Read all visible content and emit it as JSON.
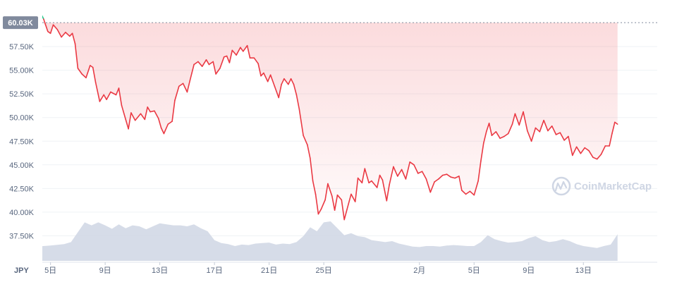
{
  "chart_data": {
    "type": "area",
    "currency_label": "JPY",
    "reference_label": "60.03K",
    "reference_value": 60030,
    "watermark": "CoinMarketCap",
    "ylim": [
      35500,
      61500
    ],
    "yticks": [
      {
        "value": 37500,
        "label": "37.50K"
      },
      {
        "value": 40000,
        "label": "40.00K"
      },
      {
        "value": 42500,
        "label": "42.50K"
      },
      {
        "value": 45000,
        "label": "45.00K"
      },
      {
        "value": 47500,
        "label": "47.50K"
      },
      {
        "value": 50000,
        "label": "50.00K"
      },
      {
        "value": 52500,
        "label": "52.50K"
      },
      {
        "value": 55000,
        "label": "55.00K"
      },
      {
        "value": 57500,
        "label": "57.50K"
      }
    ],
    "xlim": [
      0,
      41.4
    ],
    "xticks": [
      {
        "value": 4,
        "label": "5日"
      },
      {
        "value": 8,
        "label": "9日"
      },
      {
        "value": 12,
        "label": "13日"
      },
      {
        "value": 16,
        "label": "17日"
      },
      {
        "value": 20,
        "label": "21日"
      },
      {
        "value": 24,
        "label": "25日"
      },
      {
        "value": 31,
        "label": "2月"
      },
      {
        "value": 35,
        "label": "5日"
      },
      {
        "value": 39,
        "label": "9日"
      },
      {
        "value": 43,
        "label": "13日"
      }
    ],
    "colors": {
      "up": "#16c784",
      "down": "#ea3943",
      "volume": "#cfd6e4",
      "reference_box": "#808a9d",
      "grid": "#eff2f5"
    },
    "price_series": {
      "name": "Price",
      "points": [
        [
          0,
          58500
        ],
        [
          0.3,
          59500
        ],
        [
          0.6,
          58900
        ],
        [
          1.0,
          59800
        ],
        [
          1.3,
          59300
        ],
        [
          1.6,
          60100
        ],
        [
          2.0,
          60600
        ],
        [
          2.3,
          60300
        ],
        [
          2.6,
          61000
        ],
        [
          2.9,
          60500
        ],
        [
          3.2,
          61300
        ],
        [
          3.5,
          60400
        ],
        [
          3.8,
          59100
        ],
        [
          4.0,
          58900
        ],
        [
          4.2,
          59800
        ],
        [
          4.5,
          59300
        ],
        [
          4.8,
          58500
        ],
        [
          5.1,
          59000
        ],
        [
          5.4,
          58600
        ],
        [
          5.6,
          58900
        ],
        [
          5.8,
          57800
        ],
        [
          6.0,
          55200
        ],
        [
          6.3,
          54600
        ],
        [
          6.6,
          54200
        ],
        [
          6.9,
          55500
        ],
        [
          7.1,
          55300
        ],
        [
          7.3,
          53700
        ],
        [
          7.6,
          51700
        ],
        [
          7.9,
          52400
        ],
        [
          8.1,
          51900
        ],
        [
          8.4,
          52700
        ],
        [
          8.8,
          52400
        ],
        [
          9.0,
          53100
        ],
        [
          9.2,
          51300
        ],
        [
          9.5,
          49800
        ],
        [
          9.7,
          48800
        ],
        [
          9.9,
          50500
        ],
        [
          10.2,
          49700
        ],
        [
          10.6,
          50400
        ],
        [
          10.9,
          49800
        ],
        [
          11.1,
          51100
        ],
        [
          11.3,
          50600
        ],
        [
          11.6,
          50700
        ],
        [
          11.9,
          49900
        ],
        [
          12.1,
          48900
        ],
        [
          12.3,
          48300
        ],
        [
          12.6,
          49300
        ],
        [
          12.9,
          49600
        ],
        [
          13.1,
          51800
        ],
        [
          13.4,
          53300
        ],
        [
          13.7,
          53600
        ],
        [
          14.0,
          52700
        ],
        [
          14.2,
          53900
        ],
        [
          14.5,
          55600
        ],
        [
          14.8,
          55900
        ],
        [
          15.1,
          55400
        ],
        [
          15.4,
          56100
        ],
        [
          15.6,
          55600
        ],
        [
          15.9,
          55900
        ],
        [
          16.1,
          54600
        ],
        [
          16.4,
          55200
        ],
        [
          16.7,
          56400
        ],
        [
          16.9,
          56500
        ],
        [
          17.1,
          55800
        ],
        [
          17.3,
          57100
        ],
        [
          17.6,
          56600
        ],
        [
          17.9,
          57400
        ],
        [
          18.1,
          57000
        ],
        [
          18.4,
          57600
        ],
        [
          18.6,
          56300
        ],
        [
          18.9,
          56300
        ],
        [
          19.2,
          55700
        ],
        [
          19.4,
          54400
        ],
        [
          19.6,
          54700
        ],
        [
          19.9,
          53800
        ],
        [
          20.1,
          54500
        ],
        [
          20.4,
          53300
        ],
        [
          20.7,
          52100
        ],
        [
          20.9,
          53500
        ],
        [
          21.1,
          54100
        ],
        [
          21.4,
          53500
        ],
        [
          21.6,
          54100
        ],
        [
          21.8,
          53500
        ],
        [
          22.0,
          52400
        ],
        [
          22.2,
          50900
        ],
        [
          22.5,
          48100
        ],
        [
          22.8,
          47100
        ],
        [
          23.0,
          45700
        ],
        [
          23.2,
          43300
        ],
        [
          23.4,
          41900
        ],
        [
          23.6,
          39800
        ],
        [
          23.8,
          40300
        ],
        [
          24.1,
          41300
        ],
        [
          24.3,
          43000
        ],
        [
          24.6,
          41700
        ],
        [
          24.8,
          40200
        ],
        [
          25.0,
          41800
        ],
        [
          25.3,
          41300
        ],
        [
          25.5,
          39200
        ],
        [
          25.7,
          40300
        ],
        [
          26.0,
          41900
        ],
        [
          26.3,
          41100
        ],
        [
          26.5,
          43600
        ],
        [
          26.8,
          43100
        ],
        [
          27.0,
          44600
        ],
        [
          27.3,
          43100
        ],
        [
          27.5,
          43300
        ],
        [
          27.9,
          42600
        ],
        [
          28.1,
          43900
        ],
        [
          28.3,
          43400
        ],
        [
          28.6,
          41200
        ],
        [
          28.8,
          42900
        ],
        [
          29.1,
          44800
        ],
        [
          29.4,
          43800
        ],
        [
          29.7,
          44500
        ],
        [
          30.0,
          43500
        ],
        [
          30.3,
          45300
        ],
        [
          30.6,
          45000
        ],
        [
          30.9,
          44100
        ],
        [
          31.2,
          44300
        ],
        [
          31.5,
          43500
        ],
        [
          31.8,
          42100
        ],
        [
          32.1,
          43200
        ],
        [
          32.4,
          43500
        ],
        [
          32.7,
          43900
        ],
        [
          33.0,
          44000
        ],
        [
          33.3,
          43700
        ],
        [
          33.6,
          43600
        ],
        [
          33.9,
          43800
        ],
        [
          34.1,
          42300
        ],
        [
          34.4,
          41900
        ],
        [
          34.7,
          42200
        ],
        [
          35.0,
          41800
        ],
        [
          35.3,
          43300
        ],
        [
          35.5,
          45400
        ],
        [
          35.7,
          47300
        ],
        [
          35.9,
          48500
        ],
        [
          36.1,
          49400
        ],
        [
          36.3,
          48100
        ],
        [
          36.6,
          48500
        ],
        [
          36.9,
          47800
        ],
        [
          37.2,
          48000
        ],
        [
          37.5,
          48300
        ],
        [
          37.8,
          49300
        ],
        [
          38.0,
          50400
        ],
        [
          38.3,
          49200
        ],
        [
          38.6,
          50600
        ],
        [
          38.9,
          48600
        ],
        [
          39.2,
          47500
        ],
        [
          39.5,
          48900
        ],
        [
          39.8,
          48500
        ],
        [
          40.1,
          49700
        ],
        [
          40.4,
          48600
        ],
        [
          40.7,
          49100
        ],
        [
          41.0,
          48200
        ],
        [
          41.3,
          48400
        ],
        [
          41.6,
          47600
        ],
        [
          41.9,
          48000
        ],
        [
          42.2,
          46000
        ],
        [
          42.5,
          46900
        ],
        [
          42.8,
          46200
        ],
        [
          43.1,
          46800
        ],
        [
          43.4,
          46500
        ],
        [
          43.7,
          45800
        ],
        [
          44.0,
          45600
        ],
        [
          44.3,
          46100
        ],
        [
          44.6,
          47000
        ],
        [
          44.9,
          47000
        ],
        [
          45.1,
          48300
        ],
        [
          45.3,
          49500
        ],
        [
          45.5,
          49300
        ]
      ]
    },
    "volume_series": {
      "name": "Volume",
      "points": [
        [
          0,
          0.38
        ],
        [
          1,
          0.36
        ],
        [
          2,
          0.33
        ],
        [
          3,
          0.29
        ],
        [
          4,
          0.31
        ],
        [
          5,
          0.34
        ],
        [
          5.5,
          0.38
        ],
        [
          6,
          0.58
        ],
        [
          6.5,
          0.78
        ],
        [
          7,
          0.72
        ],
        [
          7.5,
          0.78
        ],
        [
          8,
          0.72
        ],
        [
          8.5,
          0.65
        ],
        [
          9,
          0.74
        ],
        [
          9.5,
          0.66
        ],
        [
          10,
          0.72
        ],
        [
          10.5,
          0.7
        ],
        [
          11,
          0.64
        ],
        [
          11.5,
          0.7
        ],
        [
          12,
          0.76
        ],
        [
          12.5,
          0.74
        ],
        [
          13,
          0.72
        ],
        [
          13.5,
          0.72
        ],
        [
          14,
          0.7
        ],
        [
          14.5,
          0.74
        ],
        [
          15,
          0.66
        ],
        [
          15.5,
          0.6
        ],
        [
          16,
          0.42
        ],
        [
          16.5,
          0.36
        ],
        [
          17,
          0.34
        ],
        [
          17.5,
          0.3
        ],
        [
          18,
          0.33
        ],
        [
          18.5,
          0.32
        ],
        [
          19,
          0.35
        ],
        [
          19.5,
          0.36
        ],
        [
          20,
          0.37
        ],
        [
          20.5,
          0.33
        ],
        [
          21,
          0.35
        ],
        [
          21.5,
          0.34
        ],
        [
          22,
          0.38
        ],
        [
          22.5,
          0.5
        ],
        [
          23,
          0.68
        ],
        [
          23.5,
          0.6
        ],
        [
          24,
          0.78
        ],
        [
          24.5,
          0.8
        ],
        [
          25,
          0.66
        ],
        [
          25.5,
          0.52
        ],
        [
          26,
          0.56
        ],
        [
          26.5,
          0.5
        ],
        [
          27,
          0.48
        ],
        [
          27.5,
          0.42
        ],
        [
          28,
          0.4
        ],
        [
          28.5,
          0.38
        ],
        [
          29,
          0.4
        ],
        [
          29.5,
          0.35
        ],
        [
          30,
          0.32
        ],
        [
          30.5,
          0.29
        ],
        [
          31,
          0.28
        ],
        [
          31.5,
          0.3
        ],
        [
          32,
          0.3
        ],
        [
          32.5,
          0.29
        ],
        [
          33,
          0.31
        ],
        [
          33.5,
          0.32
        ],
        [
          34,
          0.31
        ],
        [
          34.5,
          0.3
        ],
        [
          35,
          0.3
        ],
        [
          35.5,
          0.38
        ],
        [
          36,
          0.52
        ],
        [
          36.5,
          0.44
        ],
        [
          37,
          0.4
        ],
        [
          37.5,
          0.37
        ],
        [
          38,
          0.38
        ],
        [
          38.5,
          0.4
        ],
        [
          39,
          0.46
        ],
        [
          39.5,
          0.5
        ],
        [
          40,
          0.42
        ],
        [
          40.5,
          0.38
        ],
        [
          41,
          0.4
        ],
        [
          41.5,
          0.44
        ],
        [
          42,
          0.4
        ],
        [
          42.5,
          0.34
        ],
        [
          43,
          0.3
        ],
        [
          43.5,
          0.28
        ],
        [
          44,
          0.26
        ],
        [
          44.5,
          0.3
        ],
        [
          45,
          0.33
        ],
        [
          45.5,
          0.54
        ]
      ]
    }
  }
}
